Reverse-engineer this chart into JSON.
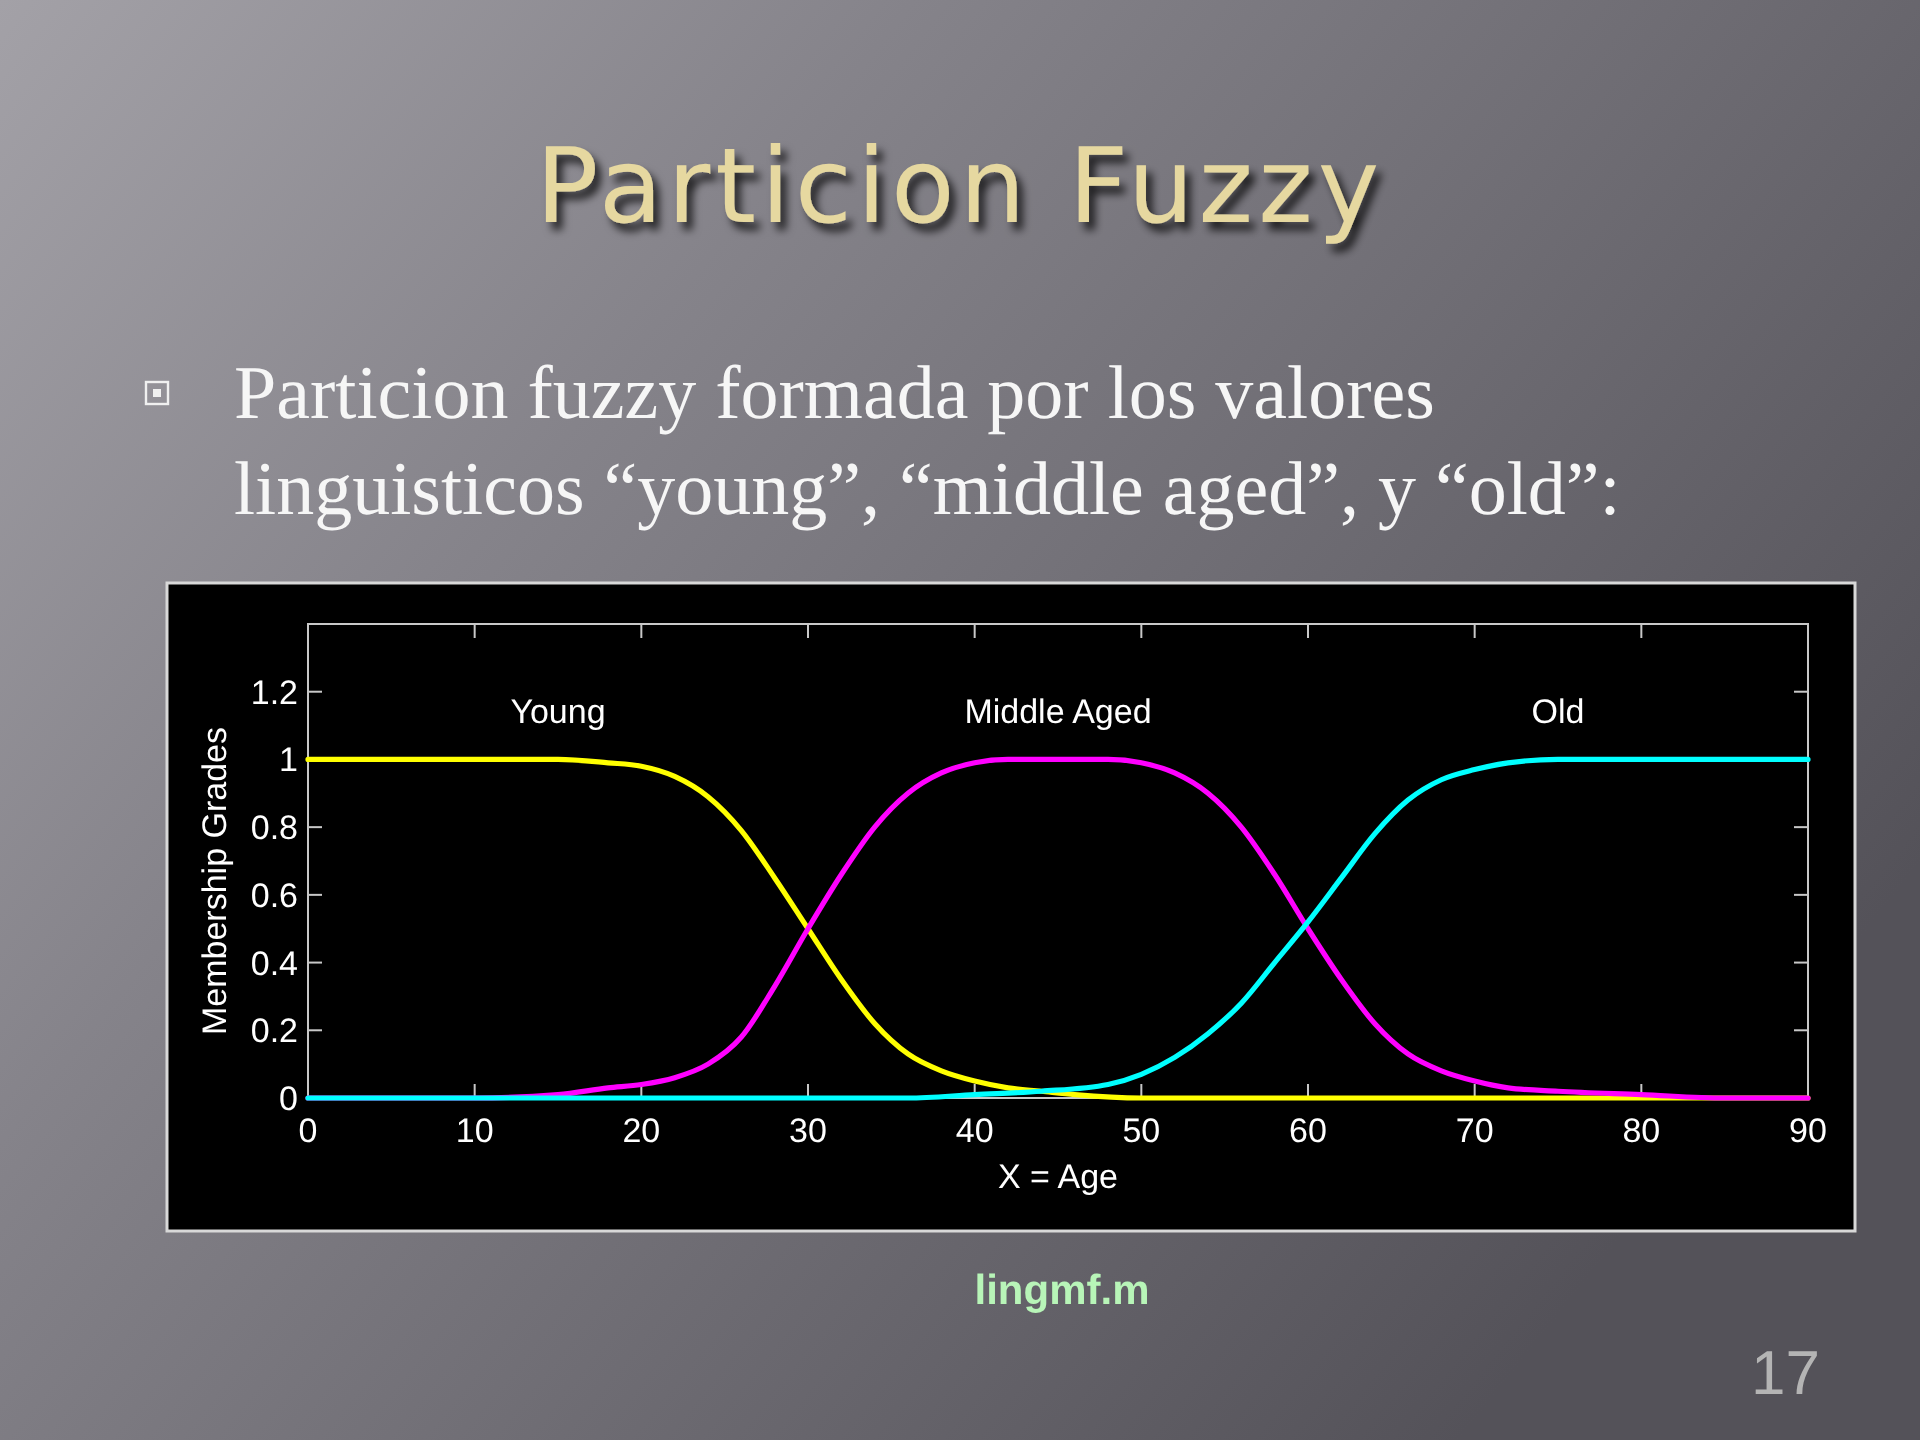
{
  "chart_data": {
    "type": "line",
    "title": "Particion Fuzzy",
    "subtitle": "Particion fuzzy formada por los valores linguisticos “young”, “middle aged”, y “old”:",
    "xlabel": "X = Age",
    "ylabel": "Membership Grades",
    "xlim": [
      0,
      90
    ],
    "ylim": [
      0,
      1.4
    ],
    "xticks": [
      0,
      10,
      20,
      30,
      40,
      50,
      60,
      70,
      80,
      90
    ],
    "yticks": [
      0,
      0.2,
      0.4,
      0.6,
      0.8,
      1,
      1.2
    ],
    "series": [
      {
        "name": "Young",
        "color": "#ffff00",
        "x": [
          0,
          5,
          10,
          15,
          18,
          20,
          22,
          24,
          26,
          28,
          30,
          32,
          34,
          36,
          38,
          40,
          42,
          44,
          46,
          50,
          60,
          70,
          80,
          90
        ],
        "values": [
          1,
          1,
          1,
          1,
          0.99,
          0.98,
          0.95,
          0.89,
          0.79,
          0.65,
          0.5,
          0.35,
          0.22,
          0.13,
          0.08,
          0.05,
          0.03,
          0.02,
          0.01,
          0,
          0,
          0,
          0,
          0
        ]
      },
      {
        "name": "Middle Aged",
        "color": "#ff00ff",
        "x": [
          0,
          5,
          10,
          15,
          18,
          20,
          22,
          24,
          26,
          28,
          30,
          32,
          34,
          36,
          38,
          40,
          42,
          45,
          48,
          50,
          52,
          54,
          56,
          58,
          60,
          62,
          64,
          66,
          68,
          70,
          72,
          75,
          80,
          85,
          90
        ],
        "values": [
          0,
          0,
          0,
          0.01,
          0.03,
          0.04,
          0.06,
          0.1,
          0.18,
          0.33,
          0.5,
          0.66,
          0.8,
          0.9,
          0.96,
          0.99,
          1,
          1,
          1,
          0.99,
          0.96,
          0.9,
          0.8,
          0.66,
          0.5,
          0.35,
          0.22,
          0.13,
          0.08,
          0.05,
          0.03,
          0.02,
          0.01,
          0,
          0
        ]
      },
      {
        "name": "Old",
        "color": "#00ffff",
        "x": [
          0,
          10,
          20,
          30,
          36,
          40,
          44,
          48,
          50,
          52,
          54,
          56,
          58,
          60,
          62,
          64,
          66,
          68,
          70,
          72,
          75,
          80,
          90
        ],
        "values": [
          0,
          0,
          0,
          0,
          0,
          0.01,
          0.02,
          0.04,
          0.07,
          0.12,
          0.19,
          0.28,
          0.4,
          0.52,
          0.65,
          0.78,
          0.88,
          0.94,
          0.97,
          0.99,
          1,
          1,
          1
        ]
      }
    ],
    "annotations": [
      "lingmf.m",
      "17"
    ]
  }
}
